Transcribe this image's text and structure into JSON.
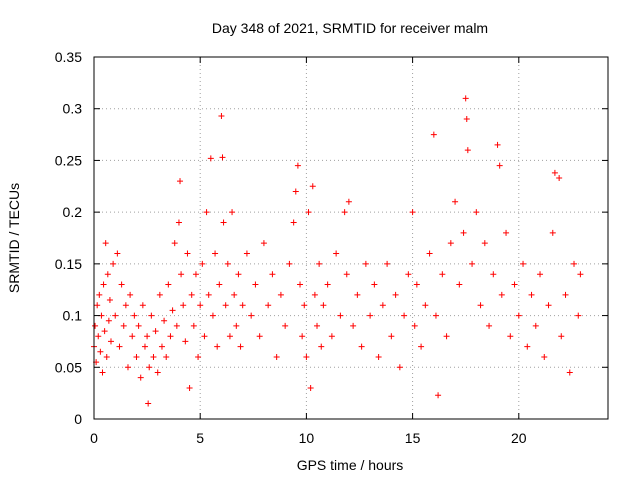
{
  "chart_data": {
    "type": "scatter",
    "title": "Day 348 of 2021, SRMTID for receiver malm",
    "xlabel": "GPS time / hours",
    "ylabel": "SRMTID / TECUs",
    "xlim": [
      0,
      24.2
    ],
    "ylim": [
      0,
      0.35
    ],
    "x_ticks": [
      0,
      5,
      10,
      15,
      20
    ],
    "x_tick_labels": [
      "0",
      "5",
      "10",
      "15",
      "20"
    ],
    "y_ticks": [
      0,
      0.05,
      0.1,
      0.15,
      0.2,
      0.25,
      0.3,
      0.35
    ],
    "y_tick_labels": [
      "0",
      "0.05",
      "0.1",
      "0.15",
      "0.2",
      "0.25",
      "0.3",
      "0.35"
    ],
    "grid": true,
    "marker": "+",
    "color": "#ff0000",
    "series": [
      {
        "name": "SRMTID",
        "points": [
          [
            0.0,
            0.07
          ],
          [
            0.05,
            0.09
          ],
          [
            0.1,
            0.055
          ],
          [
            0.15,
            0.11
          ],
          [
            0.2,
            0.08
          ],
          [
            0.25,
            0.12
          ],
          [
            0.3,
            0.065
          ],
          [
            0.35,
            0.1
          ],
          [
            0.4,
            0.045
          ],
          [
            0.45,
            0.13
          ],
          [
            0.5,
            0.085
          ],
          [
            0.55,
            0.17
          ],
          [
            0.6,
            0.06
          ],
          [
            0.65,
            0.14
          ],
          [
            0.7,
            0.095
          ],
          [
            0.75,
            0.115
          ],
          [
            0.8,
            0.075
          ],
          [
            0.9,
            0.15
          ],
          [
            1.0,
            0.1
          ],
          [
            1.1,
            0.16
          ],
          [
            1.2,
            0.07
          ],
          [
            1.3,
            0.13
          ],
          [
            1.4,
            0.09
          ],
          [
            1.5,
            0.11
          ],
          [
            1.6,
            0.05
          ],
          [
            1.7,
            0.12
          ],
          [
            1.8,
            0.08
          ],
          [
            1.9,
            0.1
          ],
          [
            2.0,
            0.06
          ],
          [
            2.1,
            0.09
          ],
          [
            2.2,
            0.04
          ],
          [
            2.3,
            0.11
          ],
          [
            2.4,
            0.07
          ],
          [
            2.5,
            0.08
          ],
          [
            2.55,
            0.015
          ],
          [
            2.6,
            0.05
          ],
          [
            2.7,
            0.1
          ],
          [
            2.8,
            0.06
          ],
          [
            2.9,
            0.085
          ],
          [
            3.0,
            0.045
          ],
          [
            3.1,
            0.12
          ],
          [
            3.2,
            0.07
          ],
          [
            3.3,
            0.095
          ],
          [
            3.4,
            0.06
          ],
          [
            3.5,
            0.13
          ],
          [
            3.6,
            0.08
          ],
          [
            3.7,
            0.105
          ],
          [
            3.8,
            0.17
          ],
          [
            3.9,
            0.09
          ],
          [
            4.0,
            0.19
          ],
          [
            4.05,
            0.23
          ],
          [
            4.1,
            0.14
          ],
          [
            4.2,
            0.11
          ],
          [
            4.3,
            0.075
          ],
          [
            4.4,
            0.16
          ],
          [
            4.5,
            0.03
          ],
          [
            4.6,
            0.12
          ],
          [
            4.7,
            0.09
          ],
          [
            4.8,
            0.14
          ],
          [
            4.9,
            0.06
          ],
          [
            5.0,
            0.11
          ],
          [
            5.1,
            0.15
          ],
          [
            5.2,
            0.08
          ],
          [
            5.3,
            0.2
          ],
          [
            5.4,
            0.12
          ],
          [
            5.5,
            0.252
          ],
          [
            5.6,
            0.1
          ],
          [
            5.7,
            0.16
          ],
          [
            5.8,
            0.07
          ],
          [
            5.9,
            0.13
          ],
          [
            6.0,
            0.293
          ],
          [
            6.05,
            0.253
          ],
          [
            6.1,
            0.19
          ],
          [
            6.2,
            0.11
          ],
          [
            6.3,
            0.15
          ],
          [
            6.4,
            0.08
          ],
          [
            6.5,
            0.2
          ],
          [
            6.6,
            0.12
          ],
          [
            6.7,
            0.09
          ],
          [
            6.8,
            0.14
          ],
          [
            6.9,
            0.07
          ],
          [
            7.0,
            0.11
          ],
          [
            7.2,
            0.16
          ],
          [
            7.4,
            0.1
          ],
          [
            7.6,
            0.13
          ],
          [
            7.8,
            0.08
          ],
          [
            8.0,
            0.17
          ],
          [
            8.2,
            0.11
          ],
          [
            8.4,
            0.14
          ],
          [
            8.6,
            0.06
          ],
          [
            8.8,
            0.12
          ],
          [
            9.0,
            0.09
          ],
          [
            9.2,
            0.15
          ],
          [
            9.4,
            0.19
          ],
          [
            9.5,
            0.22
          ],
          [
            9.6,
            0.245
          ],
          [
            9.7,
            0.13
          ],
          [
            9.8,
            0.08
          ],
          [
            9.9,
            0.11
          ],
          [
            10.0,
            0.06
          ],
          [
            10.1,
            0.2
          ],
          [
            10.2,
            0.03
          ],
          [
            10.3,
            0.225
          ],
          [
            10.4,
            0.12
          ],
          [
            10.5,
            0.09
          ],
          [
            10.6,
            0.15
          ],
          [
            10.7,
            0.07
          ],
          [
            10.8,
            0.11
          ],
          [
            11.0,
            0.13
          ],
          [
            11.2,
            0.08
          ],
          [
            11.4,
            0.16
          ],
          [
            11.6,
            0.1
          ],
          [
            11.8,
            0.2
          ],
          [
            11.9,
            0.14
          ],
          [
            12.0,
            0.21
          ],
          [
            12.2,
            0.09
          ],
          [
            12.4,
            0.12
          ],
          [
            12.6,
            0.07
          ],
          [
            12.8,
            0.15
          ],
          [
            13.0,
            0.1
          ],
          [
            13.2,
            0.13
          ],
          [
            13.4,
            0.06
          ],
          [
            13.6,
            0.11
          ],
          [
            13.8,
            0.15
          ],
          [
            14.0,
            0.08
          ],
          [
            14.2,
            0.12
          ],
          [
            14.4,
            0.05
          ],
          [
            14.6,
            0.1
          ],
          [
            14.8,
            0.14
          ],
          [
            15.0,
            0.2
          ],
          [
            15.1,
            0.09
          ],
          [
            15.2,
            0.13
          ],
          [
            15.4,
            0.07
          ],
          [
            15.6,
            0.11
          ],
          [
            15.8,
            0.16
          ],
          [
            16.0,
            0.275
          ],
          [
            16.1,
            0.1
          ],
          [
            16.2,
            0.023
          ],
          [
            16.4,
            0.14
          ],
          [
            16.6,
            0.08
          ],
          [
            16.8,
            0.17
          ],
          [
            17.0,
            0.21
          ],
          [
            17.2,
            0.13
          ],
          [
            17.4,
            0.18
          ],
          [
            17.5,
            0.31
          ],
          [
            17.55,
            0.29
          ],
          [
            17.6,
            0.26
          ],
          [
            17.8,
            0.15
          ],
          [
            18.0,
            0.2
          ],
          [
            18.2,
            0.11
          ],
          [
            18.4,
            0.17
          ],
          [
            18.6,
            0.09
          ],
          [
            18.8,
            0.14
          ],
          [
            19.0,
            0.265
          ],
          [
            19.1,
            0.245
          ],
          [
            19.2,
            0.12
          ],
          [
            19.4,
            0.18
          ],
          [
            19.6,
            0.08
          ],
          [
            19.8,
            0.13
          ],
          [
            20.0,
            0.1
          ],
          [
            20.2,
            0.15
          ],
          [
            20.4,
            0.07
          ],
          [
            20.6,
            0.12
          ],
          [
            20.8,
            0.09
          ],
          [
            21.0,
            0.14
          ],
          [
            21.2,
            0.06
          ],
          [
            21.4,
            0.11
          ],
          [
            21.6,
            0.18
          ],
          [
            21.7,
            0.238
          ],
          [
            21.9,
            0.233
          ],
          [
            22.0,
            0.08
          ],
          [
            22.2,
            0.12
          ],
          [
            22.4,
            0.045
          ],
          [
            22.6,
            0.15
          ],
          [
            22.8,
            0.1
          ],
          [
            22.9,
            0.14
          ]
        ]
      }
    ]
  }
}
